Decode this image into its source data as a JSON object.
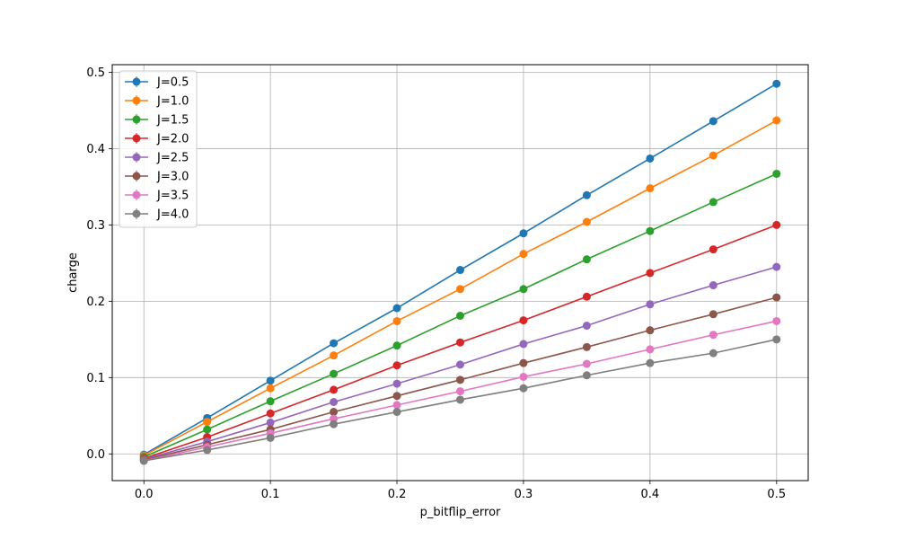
{
  "chart_data": {
    "type": "line",
    "xlabel": "p_bitflip_error",
    "ylabel": "charge",
    "xlim": [
      -0.025,
      0.525
    ],
    "ylim": [
      -0.035,
      0.51
    ],
    "x_ticks": [
      0.0,
      0.1,
      0.2,
      0.3,
      0.4,
      0.5
    ],
    "x_tick_labels": [
      "0.0",
      "0.1",
      "0.2",
      "0.3",
      "0.4",
      "0.5"
    ],
    "y_ticks": [
      0.0,
      0.1,
      0.2,
      0.3,
      0.4,
      0.5
    ],
    "y_tick_labels": [
      "0.0",
      "0.1",
      "0.2",
      "0.3",
      "0.4",
      "0.5"
    ],
    "grid": true,
    "legend_position": "top-left",
    "x": [
      0.0,
      0.05,
      0.1,
      0.15,
      0.2,
      0.25,
      0.3,
      0.35,
      0.4,
      0.45,
      0.5
    ],
    "series": [
      {
        "name": "J=0.5",
        "color": "#1f77b4",
        "values": [
          -0.001,
          0.047,
          0.096,
          0.145,
          0.191,
          0.241,
          0.289,
          0.339,
          0.387,
          0.436,
          0.485
        ]
      },
      {
        "name": "J=1.0",
        "color": "#ff7f0e",
        "values": [
          -0.002,
          0.042,
          0.086,
          0.129,
          0.174,
          0.216,
          0.262,
          0.304,
          0.348,
          0.391,
          0.437
        ]
      },
      {
        "name": "J=1.5",
        "color": "#2ca02c",
        "values": [
          -0.004,
          0.032,
          0.069,
          0.105,
          0.142,
          0.181,
          0.216,
          0.255,
          0.292,
          0.33,
          0.367
        ]
      },
      {
        "name": "J=2.0",
        "color": "#d62728",
        "values": [
          -0.006,
          0.022,
          0.053,
          0.084,
          0.116,
          0.146,
          0.175,
          0.206,
          0.237,
          0.268,
          0.3
        ]
      },
      {
        "name": "J=2.5",
        "color": "#9467bd",
        "values": [
          -0.007,
          0.016,
          0.041,
          0.068,
          0.092,
          0.117,
          0.144,
          0.168,
          0.196,
          0.221,
          0.245
        ]
      },
      {
        "name": "J=3.0",
        "color": "#8c564b",
        "values": [
          -0.008,
          0.012,
          0.032,
          0.055,
          0.076,
          0.097,
          0.119,
          0.14,
          0.162,
          0.183,
          0.205
        ]
      },
      {
        "name": "J=3.5",
        "color": "#e377c2",
        "values": [
          -0.009,
          0.009,
          0.027,
          0.046,
          0.064,
          0.082,
          0.101,
          0.118,
          0.137,
          0.156,
          0.174
        ]
      },
      {
        "name": "J=4.0",
        "color": "#7f7f7f",
        "values": [
          -0.009,
          0.005,
          0.021,
          0.039,
          0.055,
          0.071,
          0.086,
          0.103,
          0.119,
          0.132,
          0.15
        ]
      }
    ]
  }
}
